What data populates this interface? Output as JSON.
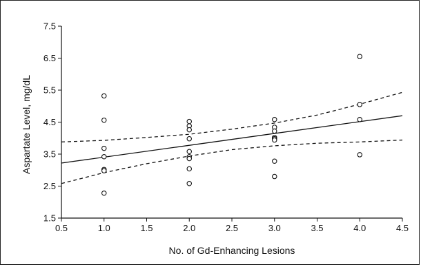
{
  "chart_data": {
    "type": "scatter",
    "xlabel": "No. of Gd-Enhancing Lesions",
    "ylabel": "Aspartate Level, mg/dL",
    "xlim": [
      0.5,
      4.5
    ],
    "ylim": [
      1.5,
      7.5
    ],
    "x_ticks": [
      "0.5",
      "1.0",
      "1.5",
      "2.0",
      "2.5",
      "3.0",
      "3.5",
      "4.0",
      "4.5"
    ],
    "y_ticks": [
      "1.5",
      "2.5",
      "3.5",
      "4.5",
      "5.5",
      "6.5",
      "7.5"
    ],
    "grid": false,
    "legend": "none",
    "series": [
      {
        "marker": "open-circle",
        "points": [
          [
            1,
            5.32
          ],
          [
            1,
            4.56
          ],
          [
            1,
            3.68
          ],
          [
            1,
            3.42
          ],
          [
            1,
            3.02
          ],
          [
            1,
            2.98
          ],
          [
            1,
            2.28
          ],
          [
            2,
            4.52
          ],
          [
            2,
            4.38
          ],
          [
            2,
            4.26
          ],
          [
            2,
            3.98
          ],
          [
            2,
            3.58
          ],
          [
            2,
            3.42
          ],
          [
            2,
            3.36
          ],
          [
            2,
            3.04
          ],
          [
            2,
            2.58
          ],
          [
            3,
            4.58
          ],
          [
            3,
            4.34
          ],
          [
            3,
            4.22
          ],
          [
            3,
            4.02
          ],
          [
            3,
            3.98
          ],
          [
            3,
            3.94
          ],
          [
            3,
            3.28
          ],
          [
            3,
            2.8
          ],
          [
            4,
            6.55
          ],
          [
            4,
            5.05
          ],
          [
            4,
            4.58
          ],
          [
            4,
            3.48
          ]
        ]
      }
    ],
    "regression": {
      "style": "solid",
      "x": [
        0.5,
        4.5
      ],
      "y": [
        3.22,
        4.7
      ]
    },
    "ci_upper": {
      "style": "dashed",
      "x": [
        0.5,
        1.0,
        1.5,
        2.0,
        2.5,
        3.0,
        3.5,
        4.0,
        4.5
      ],
      "y": [
        3.88,
        3.93,
        4.02,
        4.12,
        4.28,
        4.47,
        4.72,
        5.06,
        5.43
      ]
    },
    "ci_lower": {
      "style": "dashed",
      "x": [
        0.5,
        1.0,
        1.5,
        2.0,
        2.5,
        3.0,
        3.5,
        4.0,
        4.5
      ],
      "y": [
        2.58,
        2.92,
        3.2,
        3.44,
        3.64,
        3.76,
        3.84,
        3.88,
        3.94
      ]
    }
  }
}
